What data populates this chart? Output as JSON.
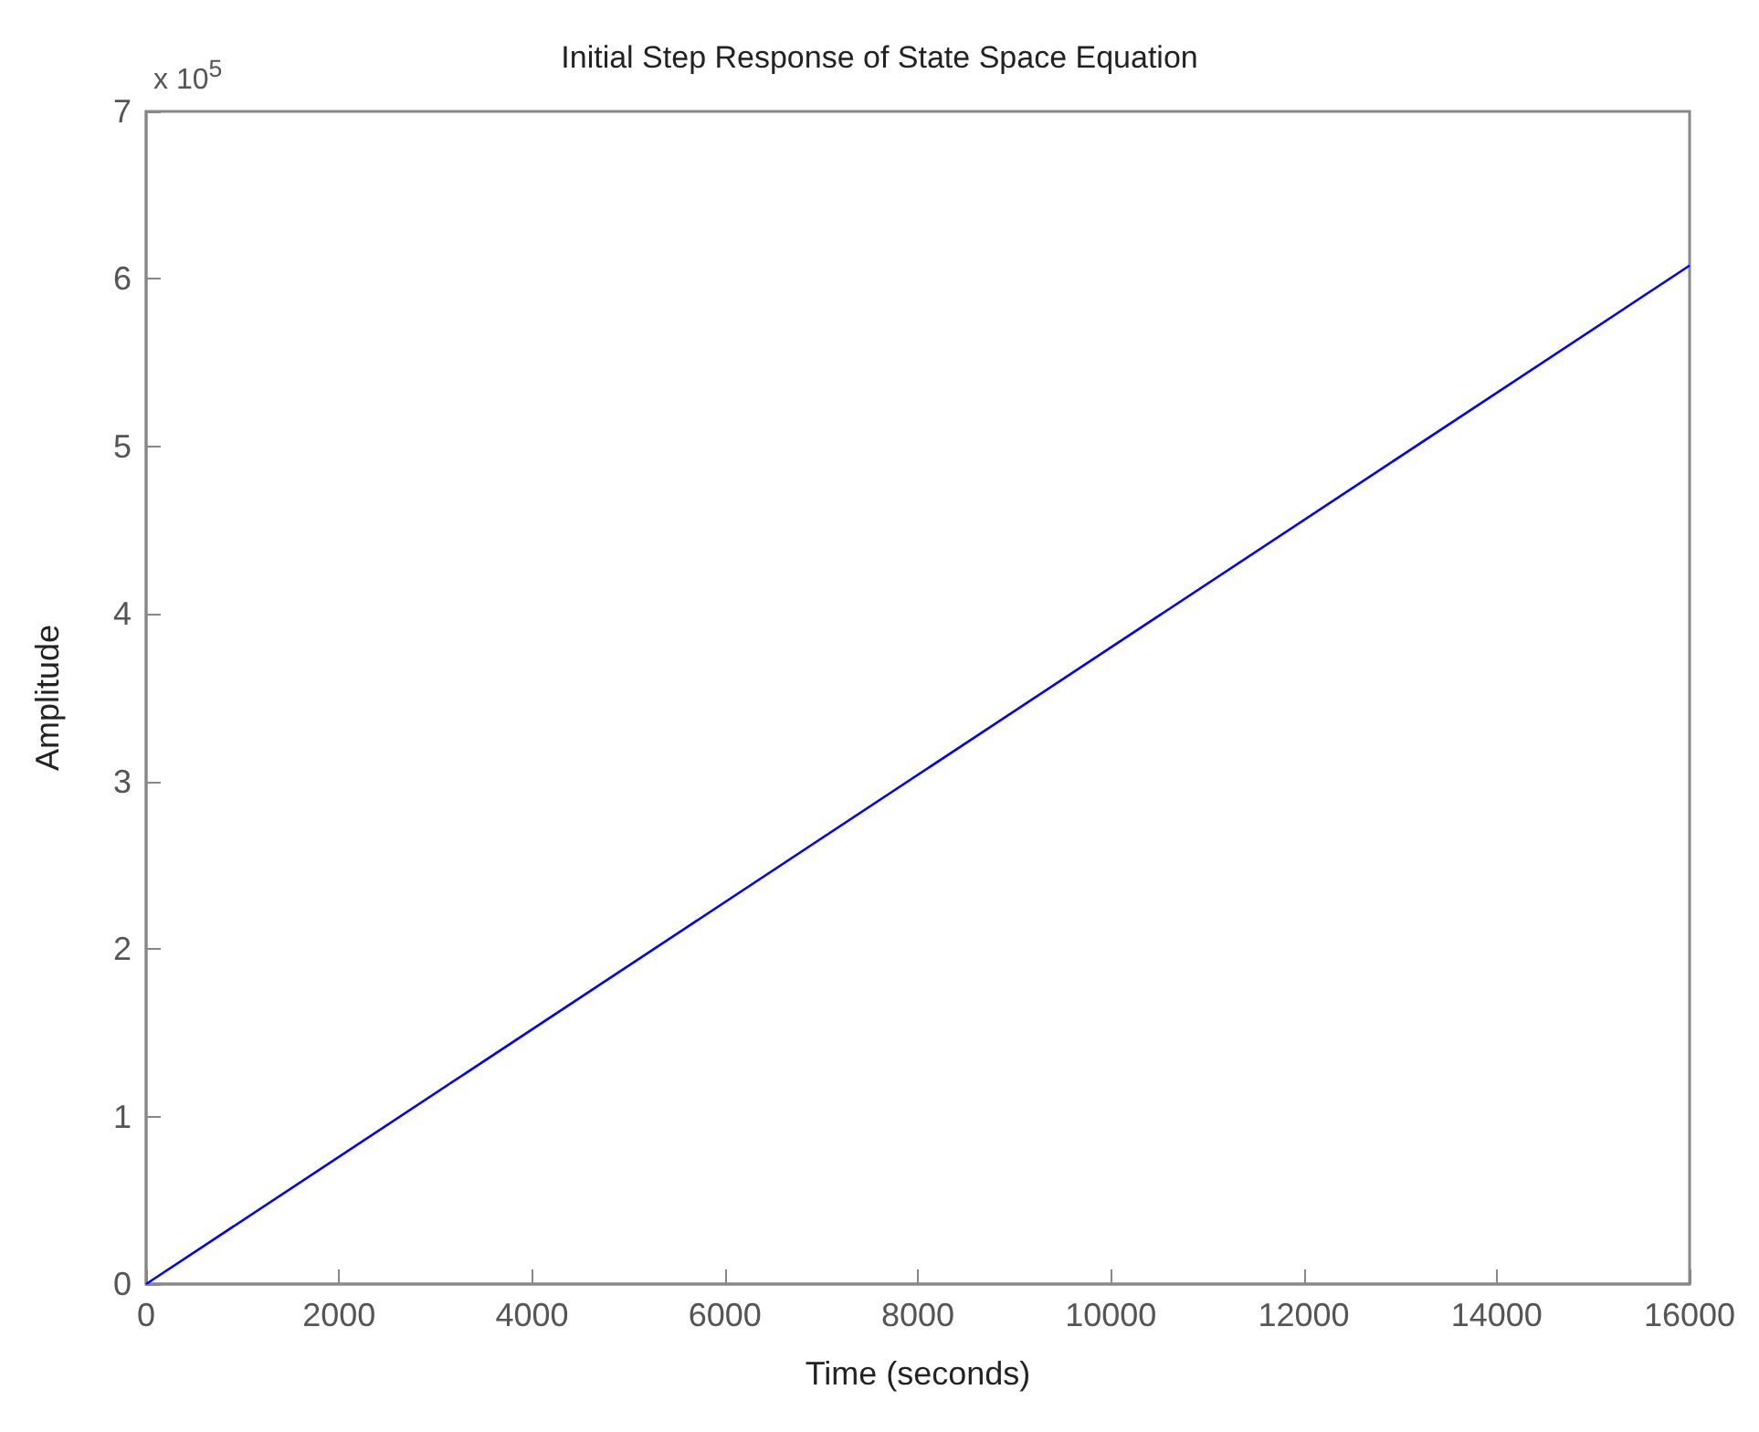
{
  "chart_data": {
    "type": "line",
    "title": "Initial Step Response of State Space Equation",
    "xlabel": "Time (seconds)",
    "ylabel": "Amplitude",
    "annotations": [
      "x 10$^{5}$"
    ],
    "x": [
      0,
      16000
    ],
    "series": [
      {
        "color": "#0000ff",
        "values": [
          0,
          6.08
        ]
      }
    ],
    "xlim": [
      0,
      16000
    ],
    "xticks": [
      0,
      2000,
      4000,
      6000,
      8000,
      10000,
      12000,
      14000,
      16000
    ],
    "ylim": [
      0,
      7
    ],
    "yticks": [
      0,
      1,
      2,
      3,
      4,
      5,
      6,
      7
    ],
    "grid": false,
    "marker": "none",
    "line_style": "solid"
  }
}
